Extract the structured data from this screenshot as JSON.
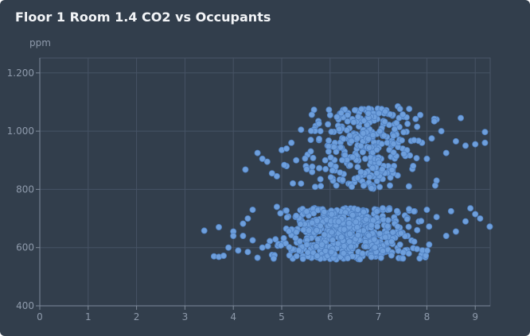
{
  "chart_data": {
    "type": "scatter",
    "title": "Floor 1 Room 1.4 CO2 vs Occupants",
    "ylabel": "ppm",
    "xlabel": "",
    "xlim": [
      0,
      9.3
    ],
    "ylim": [
      400,
      1250
    ],
    "x_ticks": [
      "0",
      "1",
      "2",
      "3",
      "4",
      "5",
      "6",
      "7",
      "8",
      "9"
    ],
    "y_ticks": [
      {
        "value": 400,
        "label": "400"
      },
      {
        "value": 600,
        "label": "600"
      },
      {
        "value": 800,
        "label": "800"
      },
      {
        "value": 1000,
        "label": "1.000"
      },
      {
        "value": 1200,
        "label": "1.200"
      }
    ],
    "grid": true,
    "point_color": "#6e9fdc",
    "clusters": [
      {
        "x_range": [
          3.4,
          9.3
        ],
        "y_range": [
          555,
          740
        ],
        "count": 560
      },
      {
        "x_range": [
          4.2,
          9.2
        ],
        "y_range": [
          795,
          1085
        ],
        "count": 300
      }
    ],
    "points": [
      [
        3.4,
        658
      ],
      [
        3.6,
        570
      ],
      [
        3.7,
        670
      ],
      [
        3.7,
        568
      ],
      [
        3.8,
        572
      ],
      [
        4.0,
        655
      ],
      [
        4.1,
        590
      ],
      [
        4.2,
        682
      ],
      [
        4.25,
        868
      ],
      [
        4.3,
        700
      ],
      [
        4.5,
        925
      ],
      [
        4.5,
        565
      ],
      [
        4.6,
        905
      ],
      [
        4.7,
        895
      ],
      [
        4.8,
        855
      ],
      [
        4.9,
        845
      ],
      [
        5.0,
        935
      ],
      [
        5.1,
        880
      ],
      [
        5.1,
        940
      ],
      [
        5.2,
        960
      ],
      [
        5.3,
        900
      ],
      [
        5.4,
        820
      ],
      [
        5.4,
        1005
      ],
      [
        5.5,
        880
      ],
      [
        5.6,
        970
      ],
      [
        5.7,
        1018
      ],
      [
        5.8,
        1000
      ],
      [
        5.8,
        835
      ],
      [
        5.9,
        900
      ],
      [
        6.0,
        1055
      ],
      [
        6.1,
        865
      ],
      [
        6.2,
        1000
      ],
      [
        6.3,
        930
      ],
      [
        6.4,
        1010
      ],
      [
        6.5,
        985
      ],
      [
        6.6,
        1030
      ],
      [
        6.7,
        1075
      ],
      [
        6.7,
        850
      ],
      [
        6.8,
        940
      ],
      [
        6.9,
        1050
      ],
      [
        7.0,
        960
      ],
      [
        7.1,
        1035
      ],
      [
        7.2,
        880
      ],
      [
        7.3,
        990
      ],
      [
        7.4,
        1085
      ],
      [
        7.5,
        940
      ],
      [
        7.6,
        1025
      ],
      [
        7.7,
        870
      ],
      [
        7.8,
        1015
      ],
      [
        7.9,
        960
      ],
      [
        8.0,
        905
      ],
      [
        8.1,
        975
      ],
      [
        8.2,
        1040
      ],
      [
        8.2,
        830
      ],
      [
        8.3,
        1000
      ],
      [
        8.4,
        925
      ],
      [
        8.6,
        965
      ],
      [
        8.7,
        1045
      ],
      [
        8.8,
        950
      ],
      [
        9.0,
        955
      ],
      [
        9.2,
        997
      ],
      [
        9.2,
        960
      ],
      [
        8.9,
        735
      ],
      [
        9.0,
        715
      ],
      [
        9.1,
        700
      ],
      [
        9.3,
        672
      ],
      [
        8.8,
        690
      ],
      [
        8.6,
        655
      ],
      [
        8.5,
        725
      ],
      [
        8.4,
        640
      ],
      [
        8.2,
        705
      ],
      [
        8.0,
        730
      ],
      [
        7.8,
        660
      ],
      [
        7.6,
        640
      ],
      [
        7.4,
        720
      ],
      [
        7.2,
        615
      ],
      [
        7.0,
        690
      ],
      [
        6.8,
        610
      ],
      [
        6.6,
        655
      ],
      [
        6.4,
        600
      ],
      [
        6.2,
        700
      ],
      [
        6.0,
        580
      ],
      [
        5.8,
        575
      ],
      [
        5.6,
        590
      ],
      [
        5.4,
        605
      ],
      [
        5.2,
        590
      ],
      [
        5.0,
        610
      ],
      [
        4.8,
        575
      ],
      [
        4.6,
        600
      ],
      [
        4.4,
        625
      ],
      [
        4.3,
        585
      ],
      [
        4.2,
        640
      ],
      [
        4.0,
        640
      ],
      [
        3.9,
        600
      ],
      [
        4.4,
        730
      ],
      [
        4.9,
        740
      ]
    ]
  }
}
